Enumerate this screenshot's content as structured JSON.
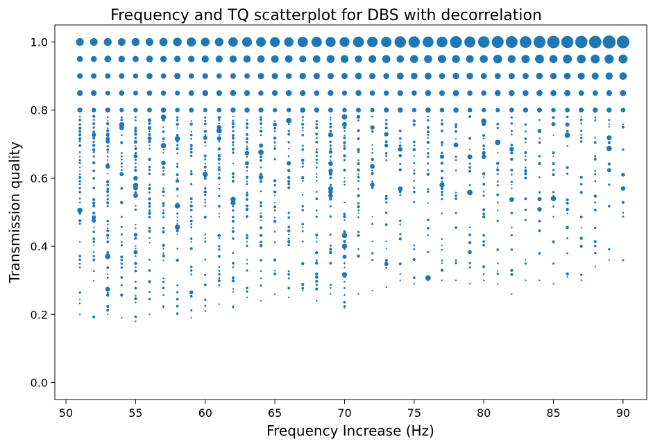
{
  "chart_data": {
    "type": "scatter",
    "title": "Frequency and TQ scatterplot for DBS with decorrelation",
    "xlabel": "Frequency Increase (Hz)",
    "ylabel": "Transmission quality",
    "xlim": [
      49.2,
      91.7
    ],
    "ylim": [
      -0.05,
      1.05
    ],
    "x_ticks": [
      50,
      55,
      60,
      65,
      70,
      75,
      80,
      85,
      90
    ],
    "y_ticks": [
      0.0,
      0.2,
      0.4,
      0.6,
      0.8,
      1.0
    ],
    "x_tick_labels": [
      "50",
      "55",
      "60",
      "65",
      "70",
      "75",
      "80",
      "85",
      "90"
    ],
    "y_tick_labels": [
      "0.0",
      "0.2",
      "0.4",
      "0.6",
      "0.8",
      "1.0"
    ],
    "grid": false,
    "marker_color": "#1f77b4",
    "x_range": [
      51,
      90
    ],
    "x_step": 1,
    "note_size": "marker area encodes count of observations at each (frequency, quality) pair",
    "min_quality_by_x": [
      0.2,
      0.19,
      0.2,
      0.19,
      0.18,
      0.2,
      0.22,
      0.2,
      0.19,
      0.21,
      0.23,
      0.22,
      0.25,
      0.24,
      0.26,
      0.25,
      0.27,
      0.24,
      0.26,
      0.22,
      0.26,
      0.27,
      0.28,
      0.3,
      0.29,
      0.3,
      0.3,
      0.3,
      0.29,
      0.3,
      0.29,
      0.26,
      0.3,
      0.3,
      0.29,
      0.31,
      0.3,
      0.34,
      0.36,
      0.36
    ],
    "top_rows": [
      {
        "y": 1.0,
        "size_start": 5.5,
        "size_end": 9.5
      },
      {
        "y": 0.95,
        "size_start": 4.5,
        "size_end": 6.5
      },
      {
        "y": 0.9,
        "size_start": 4.0,
        "size_end": 5.0
      },
      {
        "y": 0.85,
        "size_start": 3.8,
        "size_end": 4.2
      },
      {
        "y": 0.8,
        "size_start": 3.5,
        "size_end": 3.5
      }
    ]
  }
}
